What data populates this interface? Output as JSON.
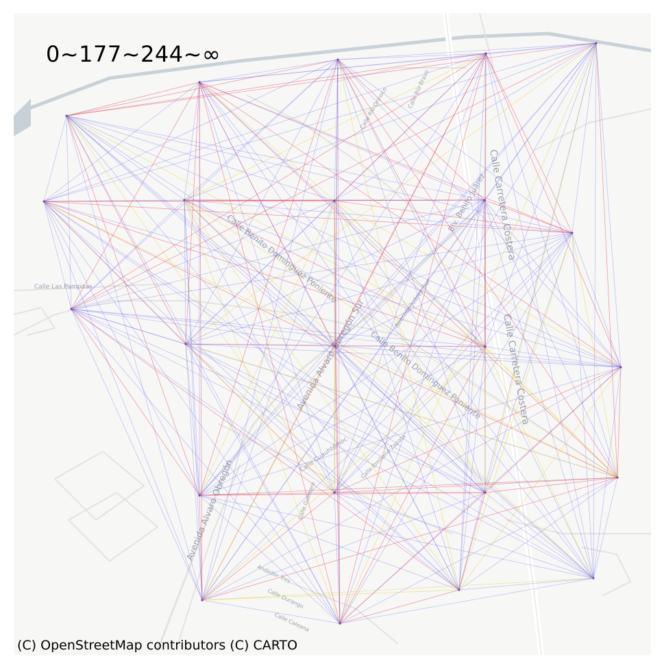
{
  "title": "0~177~244~∞",
  "attribution": "(C) OpenStreetMap contributors (C) CARTO",
  "legend_bins": [
    "0",
    "177",
    "244",
    "∞"
  ],
  "colors": {
    "background": "#f7f7f6",
    "road": "#e3e3e1",
    "road_major": "#c9d1d8",
    "label": "#9aa3ab",
    "bin_low": "#5a5af0",
    "bin_mid": "#e03c5a",
    "bin_high": "#e8d23a"
  },
  "street_labels": [
    "Calle Carretera Costera",
    "Calle Carretera Costera",
    "Avenida Alvaro Obregón Sur",
    "Avenida Alvaro Obregón",
    "Calle Benito Domínguez Poniente",
    "Calle Benito Domínguez Poniente",
    "Calle Las Pampitas",
    "Blv. Benito Juárez",
    "Avenida Juárez Sur",
    "Calle Cuauhtémoc",
    "Andador Tres",
    "Calle Durango",
    "Calle Caleana",
    "Calle Guerrero",
    "Calle Emiliano Zapata",
    "Calle Río Orinoco",
    "Calle Río Bravo"
  ]
}
